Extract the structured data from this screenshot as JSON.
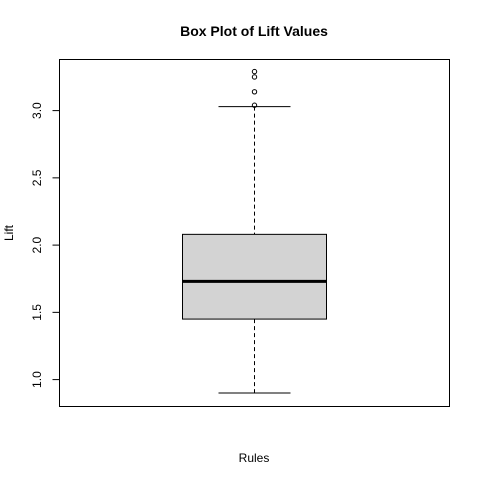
{
  "chart_data": {
    "type": "boxplot",
    "title": "Box Plot of Lift Values",
    "xlabel": "Rules",
    "ylabel": "Lift",
    "ylim": [
      0.8,
      3.38
    ],
    "yticks": [
      1.0,
      1.5,
      2.0,
      2.5,
      3.0
    ],
    "ytick_labels": [
      "1.0",
      "1.5",
      "2.0",
      "2.5",
      "3.0"
    ],
    "box": {
      "min": 0.9,
      "q1": 1.45,
      "median": 1.73,
      "q3": 2.08,
      "max": 3.03
    },
    "outliers": [
      3.04,
      3.14,
      3.25,
      3.29
    ],
    "box_fill": "#d3d3d3",
    "grid": false
  }
}
